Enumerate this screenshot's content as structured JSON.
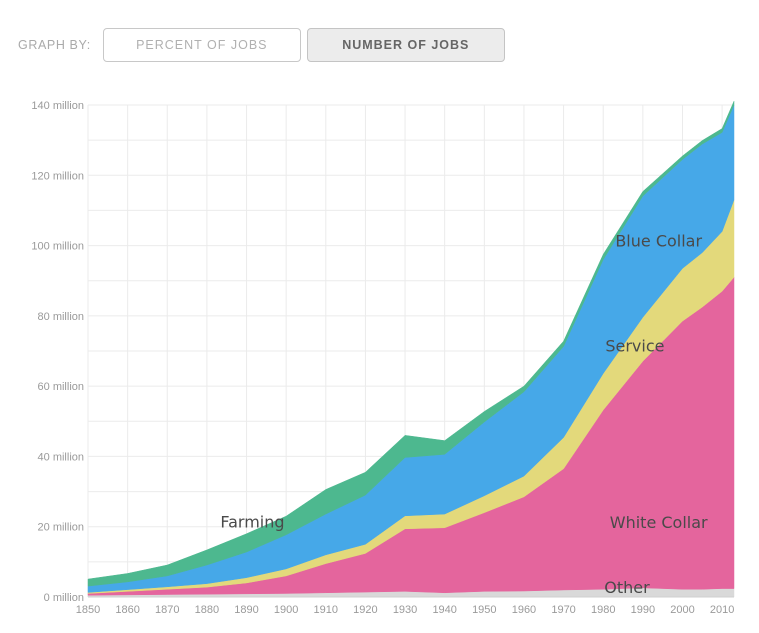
{
  "controls": {
    "graph_by_label": "GRAPH BY:",
    "percent_button": "PERCENT OF JOBS",
    "number_button": "NUMBER OF JOBS",
    "active": "number"
  },
  "chart_data": {
    "type": "area",
    "stacked": true,
    "x": [
      1850,
      1860,
      1870,
      1880,
      1890,
      1900,
      1910,
      1920,
      1930,
      1940,
      1950,
      1960,
      1970,
      1980,
      1990,
      2000,
      2005,
      2010,
      2013
    ],
    "series": [
      {
        "name": "Other",
        "color": "#d9d9d9",
        "label_color": "#4a4a4a",
        "values": [
          0.5,
          0.6,
          0.7,
          0.8,
          0.9,
          1.0,
          1.2,
          1.4,
          1.6,
          1.2,
          1.6,
          1.7,
          2.0,
          2.2,
          2.6,
          2.2,
          2.2,
          2.4,
          2.4
        ]
      },
      {
        "name": "White Collar",
        "color": "#e4659d",
        "label_color": "#4a4a4a",
        "values": [
          0.5,
          1.0,
          1.5,
          2.0,
          3.1,
          5.0,
          8.3,
          11.0,
          17.8,
          18.5,
          22.4,
          26.8,
          34.5,
          51.0,
          64.5,
          76.3,
          80.3,
          84.6,
          88.6
        ]
      },
      {
        "name": "Service",
        "color": "#e3d97b",
        "label_color": "#4a4a4a",
        "values": [
          0.3,
          0.5,
          0.7,
          1.0,
          1.5,
          2.0,
          2.5,
          2.6,
          3.7,
          3.9,
          4.8,
          5.9,
          8.9,
          10.4,
          12.5,
          15.0,
          15.5,
          17.0,
          22.0
        ]
      },
      {
        "name": "Blue Collar",
        "color": "#46a8e8",
        "label_color": "#4a4a4a",
        "values": [
          1.8,
          2.2,
          3.1,
          5.3,
          7.3,
          9.7,
          11.6,
          14.0,
          16.6,
          17.0,
          21.0,
          24.0,
          25.9,
          32.4,
          34.5,
          31.0,
          30.9,
          28.2,
          27.0
        ]
      },
      {
        "name": "Farming",
        "color": "#4db88f",
        "label_color": "#4a4a4a",
        "values": [
          2.0,
          2.4,
          3.1,
          4.3,
          5.2,
          5.3,
          7.0,
          6.5,
          6.3,
          3.9,
          3.0,
          1.6,
          1.5,
          1.5,
          1.3,
          1.0,
          1.0,
          1.1,
          1.1
        ]
      }
    ],
    "label_x": {
      "Other": 1986,
      "White Collar": 1994,
      "Service": 1988,
      "Blue Collar": 1994,
      "Farming": 1891.5
    },
    "label_y": {
      "Other": 2.9,
      "White Collar": 21.3,
      "Service": 71.5,
      "Blue Collar": 101.5,
      "Farming": 21.5
    },
    "y_ticks": [
      0,
      20,
      40,
      60,
      80,
      100,
      120,
      140
    ],
    "y_tick_labels": [
      "0 million",
      "20 million",
      "40 million",
      "60 million",
      "80 million",
      "100 million",
      "120 million",
      "140 million"
    ],
    "x_ticks": [
      1850,
      1860,
      1870,
      1880,
      1890,
      1900,
      1910,
      1920,
      1930,
      1940,
      1950,
      1960,
      1970,
      1980,
      1990,
      2000,
      2010
    ],
    "xlim": [
      1850,
      2013
    ],
    "ylim": [
      0,
      140
    ],
    "grid": true
  }
}
